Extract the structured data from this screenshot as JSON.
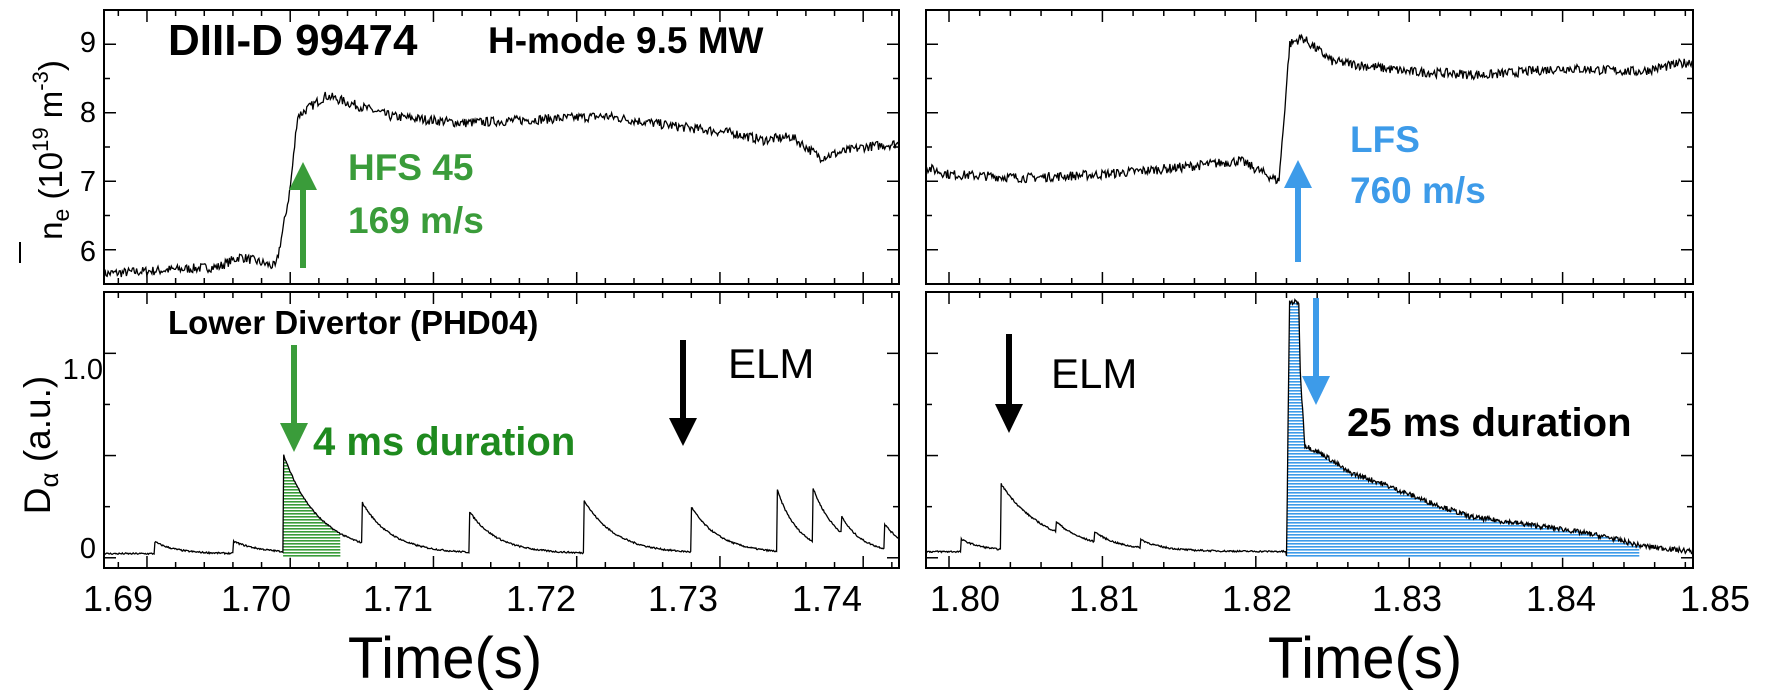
{
  "colors": {
    "hfs_green": "#3a9c3a",
    "hfs_text_green": "#1e8a1e",
    "lfs_blue": "#3d9be9",
    "trace": "#000000"
  },
  "labels": {
    "shot_title": "DIII-D 99474",
    "shot_subtitle": "H-mode 9.5 MW",
    "y_top_sym": "n",
    "y_top_sub": "e",
    "y_top_units_open": " (10",
    "y_top_units_exp": "19",
    "y_top_units_m": " m",
    "y_top_units_exp2": "-3",
    "y_top_units_close": ")",
    "y_bot_sym": "D",
    "y_bot_sub": "α",
    "y_bot_units": " (a.u.)",
    "x_label": "Time(s)"
  },
  "annotations": {
    "hfs_line1": "HFS 45",
    "hfs_line2": "169 m/s",
    "lfs_line1": "LFS",
    "lfs_line2": "760 m/s",
    "divertor": "Lower Divertor (PHD04)",
    "elm": "ELM",
    "dur_left": "4 ms duration",
    "dur_right": "25 ms duration"
  },
  "chart_data": [
    {
      "type": "line",
      "panel": "top-left",
      "xlim": [
        1.687,
        1.7425
      ],
      "ylim": [
        5.5,
        9.5
      ],
      "yticks": [
        "6",
        "7",
        "8",
        "9"
      ],
      "ytick_values": [
        6,
        7,
        8,
        9
      ],
      "x": [
        1.687,
        1.695,
        1.6965,
        1.699,
        1.6995,
        1.7,
        1.7003,
        1.7005,
        1.7015,
        1.7025,
        1.707,
        1.712,
        1.717,
        1.722,
        1.727,
        1.731,
        1.733,
        1.735,
        1.737,
        1.74,
        1.7425
      ],
      "y": [
        5.65,
        5.75,
        5.9,
        5.75,
        6.3,
        6.9,
        7.5,
        7.95,
        8.1,
        8.25,
        7.95,
        7.85,
        7.9,
        7.95,
        7.8,
        7.7,
        7.6,
        7.65,
        7.35,
        7.5,
        7.55
      ]
    },
    {
      "type": "line",
      "panel": "top-right",
      "xlim": [
        1.7985,
        1.8485
      ],
      "ylim": [
        5.5,
        9.5
      ],
      "x": [
        1.7985,
        1.8,
        1.805,
        1.81,
        1.815,
        1.819,
        1.8215,
        1.8218,
        1.8222,
        1.823,
        1.825,
        1.83,
        1.835,
        1.84,
        1.845,
        1.8485
      ],
      "y": [
        7.2,
        7.1,
        7.05,
        7.1,
        7.2,
        7.3,
        7.0,
        7.8,
        9.0,
        9.1,
        8.75,
        8.6,
        8.55,
        8.65,
        8.6,
        8.75
      ]
    },
    {
      "type": "line",
      "panel": "bottom-left",
      "xlim": [
        1.687,
        1.7425
      ],
      "ylim": [
        -0.05,
        1.3
      ],
      "yticks": [
        "0",
        "1.0"
      ],
      "ytick_values": [
        0,
        1.0
      ],
      "xticks": [
        "1.69",
        "1.70",
        "1.71",
        "1.72",
        "1.73",
        "1.74"
      ],
      "xtick_values": [
        1.69,
        1.7,
        1.71,
        1.72,
        1.73,
        1.74
      ],
      "spikes": [
        {
          "t": 1.6905,
          "h": 0.06,
          "d": 0.0015
        },
        {
          "t": 1.696,
          "h": 0.06,
          "d": 0.002
        },
        {
          "t": 1.6995,
          "h": 0.48,
          "d": 0.0025
        },
        {
          "t": 1.705,
          "h": 0.2,
          "d": 0.002
        },
        {
          "t": 1.7125,
          "h": 0.2,
          "d": 0.002
        },
        {
          "t": 1.7205,
          "h": 0.26,
          "d": 0.0022
        },
        {
          "t": 1.728,
          "h": 0.22,
          "d": 0.002
        },
        {
          "t": 1.734,
          "h": 0.3,
          "d": 0.0015
        },
        {
          "t": 1.7365,
          "h": 0.26,
          "d": 0.0018
        },
        {
          "t": 1.7385,
          "h": 0.08,
          "d": 0.0012
        },
        {
          "t": 1.7415,
          "h": 0.12,
          "d": 0.0015
        }
      ]
    },
    {
      "type": "line",
      "panel": "bottom-right",
      "xlim": [
        1.7985,
        1.8485
      ],
      "ylim": [
        -0.05,
        1.3
      ],
      "xticks": [
        "1.80",
        "1.81",
        "1.82",
        "1.83",
        "1.84",
        "1.85"
      ],
      "xtick_values": [
        1.8,
        1.81,
        1.82,
        1.83,
        1.84,
        1.85
      ],
      "spikes": [
        {
          "t": 1.8008,
          "h": 0.06,
          "d": 0.0015
        },
        {
          "t": 1.8034,
          "h": 0.32,
          "d": 0.003
        },
        {
          "t": 1.807,
          "h": 0.05,
          "d": 0.0012
        },
        {
          "t": 1.8095,
          "h": 0.05,
          "d": 0.0012
        },
        {
          "t": 1.8125,
          "h": 0.04,
          "d": 0.0012
        }
      ],
      "burst": {
        "x": [
          1.822,
          1.8222,
          1.8228,
          1.8229,
          1.8232,
          1.8245,
          1.826,
          1.828,
          1.831,
          1.834,
          1.837,
          1.84,
          1.843,
          1.845,
          1.8485
        ],
        "y": [
          0.0,
          1.25,
          1.25,
          0.9,
          0.55,
          0.5,
          0.42,
          0.37,
          0.28,
          0.2,
          0.17,
          0.14,
          0.1,
          0.06,
          0.03
        ]
      }
    }
  ]
}
